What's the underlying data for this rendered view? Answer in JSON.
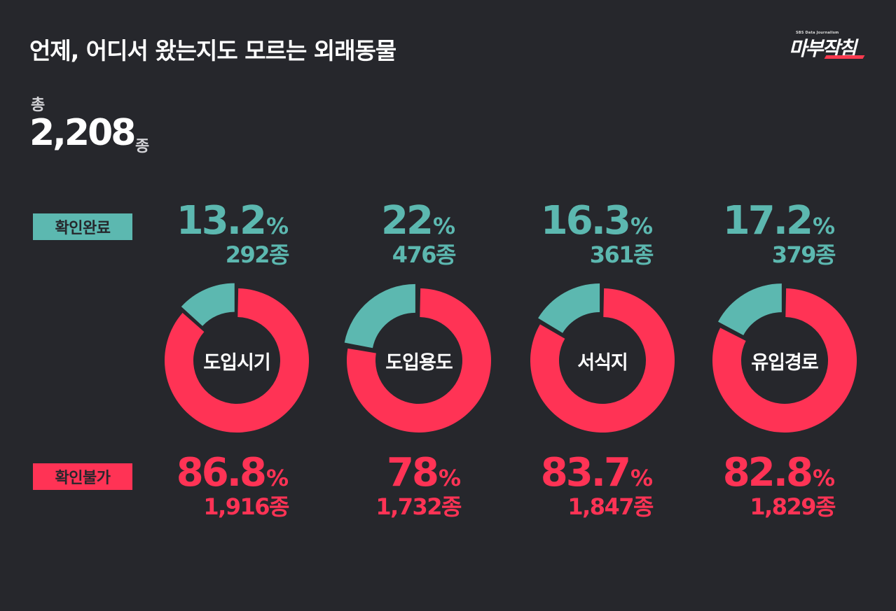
{
  "header": {
    "title": "언제, 어디서 왔는지도 모르는 외래동물",
    "logo": {
      "subtitle": "SBS Data Journalism",
      "name": "마부작침"
    }
  },
  "total": {
    "label": "총",
    "value": "2,208",
    "unit": "종"
  },
  "legend": {
    "confirmed": "확인완료",
    "unconfirmed": "확인불가"
  },
  "colors": {
    "background": "#26272c",
    "confirmed": "#5cb8b0",
    "unconfirmed": "#ff3355",
    "text": "#ffffff"
  },
  "columns": [
    {
      "category": "도입시기",
      "confirmed": {
        "pct": "13.2",
        "count": "292종"
      },
      "unconfirmed": {
        "pct": "86.8",
        "count": "1,916종"
      }
    },
    {
      "category": "도입용도",
      "confirmed": {
        "pct": "22",
        "count": "476종"
      },
      "unconfirmed": {
        "pct": "78",
        "count": "1,732종"
      }
    },
    {
      "category": "서식지",
      "confirmed": {
        "pct": "16.3",
        "count": "361종"
      },
      "unconfirmed": {
        "pct": "83.7",
        "count": "1,847종"
      }
    },
    {
      "category": "유입경로",
      "confirmed": {
        "pct": "17.2",
        "count": "379종"
      },
      "unconfirmed": {
        "pct": "82.8",
        "count": "1,829종"
      }
    }
  ],
  "pct_sign": "%",
  "chart_data": {
    "type": "pie",
    "subtype": "donut",
    "title": "언제, 어디서 왔는지도 모르는 외래동물",
    "total": 2208,
    "total_unit": "종",
    "categories": [
      "도입시기",
      "도입용도",
      "서식지",
      "유입경로"
    ],
    "series": [
      {
        "name": "확인완료",
        "color": "#5cb8b0",
        "values_pct": [
          13.2,
          22,
          16.3,
          17.2
        ],
        "counts": [
          292,
          476,
          361,
          379
        ]
      },
      {
        "name": "확인불가",
        "color": "#ff3355",
        "values_pct": [
          86.8,
          78,
          83.7,
          82.8
        ],
        "counts": [
          1916,
          1732,
          1847,
          1829
        ]
      }
    ],
    "legend_position": "left"
  }
}
